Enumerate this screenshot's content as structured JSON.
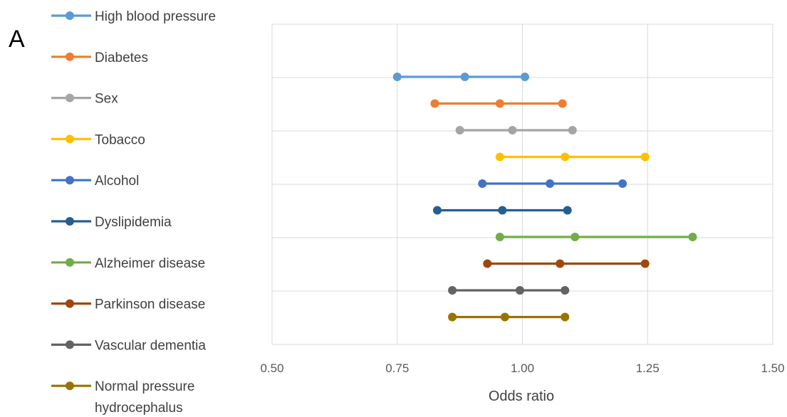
{
  "panel_label": "A",
  "chart_data": {
    "type": "line",
    "xlabel": "Odds ratio",
    "ylabel": "",
    "xlim": [
      0.5,
      1.5
    ],
    "x_ticks": [
      "0.50",
      "0.75",
      "1.00",
      "1.25",
      "1.50"
    ],
    "grid": {
      "vertical": true,
      "horizontal": true
    },
    "legend": "left",
    "series": [
      {
        "name": "High blood pressure",
        "color": "#5B9BD5",
        "values": [
          0.75,
          0.885,
          1.005
        ]
      },
      {
        "name": "Diabetes",
        "color": "#ED7D31",
        "values": [
          0.825,
          0.955,
          1.08
        ]
      },
      {
        "name": "Sex",
        "color": "#A5A5A5",
        "values": [
          0.875,
          0.98,
          1.1
        ]
      },
      {
        "name": "Tobacco",
        "color": "#FFC000",
        "values": [
          0.955,
          1.085,
          1.245
        ]
      },
      {
        "name": "Alcohol",
        "color": "#4472C4",
        "values": [
          0.92,
          1.055,
          1.2
        ]
      },
      {
        "name": "Dyslipidemia",
        "color": "#255E91",
        "values": [
          0.83,
          0.96,
          1.09
        ]
      },
      {
        "name": "Alzheimer disease",
        "color": "#70AD47",
        "values": [
          0.955,
          1.105,
          1.34
        ]
      },
      {
        "name": "Parkinson disease",
        "color": "#9E480E",
        "values": [
          0.93,
          1.075,
          1.245
        ]
      },
      {
        "name": "Vascular dementia",
        "color": "#636363",
        "values": [
          0.86,
          0.995,
          1.085
        ]
      },
      {
        "name": "Normal pressure hydrocephalus",
        "name_lines": [
          "Normal pressure",
          "hydrocephalus"
        ],
        "color": "#997300",
        "values": [
          0.86,
          0.965,
          1.085
        ]
      }
    ]
  }
}
